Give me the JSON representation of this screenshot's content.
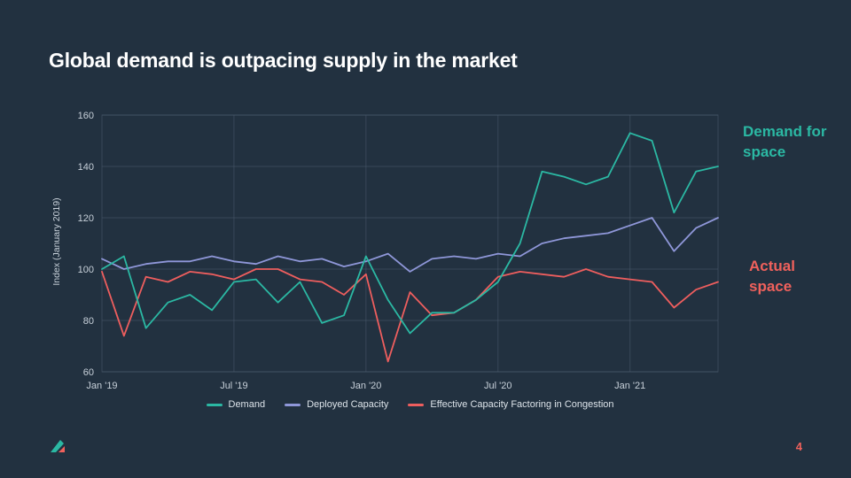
{
  "slide": {
    "title": "Global demand is outpacing supply in the market",
    "page_number": "4",
    "background_color": "#223140",
    "accent_teal": "#2bb8a3",
    "accent_coral": "#f0615c"
  },
  "chart_data": {
    "type": "line",
    "title": "",
    "xlabel": "",
    "ylabel": "Index (January 2019)",
    "ylim": [
      60,
      160
    ],
    "yticks": [
      60,
      80,
      100,
      120,
      140,
      160
    ],
    "x_tick_labels": [
      "Jan '19",
      "Jul '19",
      "Jan '20",
      "Jul '20",
      "Jan '21"
    ],
    "x_tick_indices": [
      0,
      6,
      12,
      18,
      24
    ],
    "grid": true,
    "legend_position": "bottom",
    "series": [
      {
        "name": "Demand",
        "color": "#2bb8a3",
        "values": [
          100,
          105,
          77,
          87,
          90,
          84,
          95,
          96,
          87,
          95,
          79,
          82,
          105,
          88,
          75,
          83,
          83,
          88,
          95,
          110,
          138,
          136,
          133,
          136,
          153,
          150,
          122,
          138,
          140
        ]
      },
      {
        "name": "Deployed Capacity",
        "color": "#8f97d9",
        "values": [
          104,
          100,
          102,
          103,
          103,
          105,
          103,
          102,
          105,
          103,
          104,
          101,
          103,
          106,
          99,
          104,
          105,
          104,
          106,
          105,
          110,
          112,
          113,
          114,
          117,
          120,
          107,
          116,
          120
        ]
      },
      {
        "name": "Effective Capacity Factoring in Congestion",
        "color": "#ee5e5e",
        "values": [
          99,
          74,
          97,
          95,
          99,
          98,
          96,
          100,
          100,
          96,
          95,
          90,
          98,
          64,
          91,
          82,
          83,
          88,
          97,
          99,
          98,
          97,
          100,
          97,
          96,
          95,
          85,
          92,
          95
        ]
      }
    ]
  },
  "annotations": [
    {
      "text": "Demand for space",
      "color": "#2bb8a3"
    },
    {
      "text": "Actual space",
      "color": "#f0615c"
    }
  ]
}
